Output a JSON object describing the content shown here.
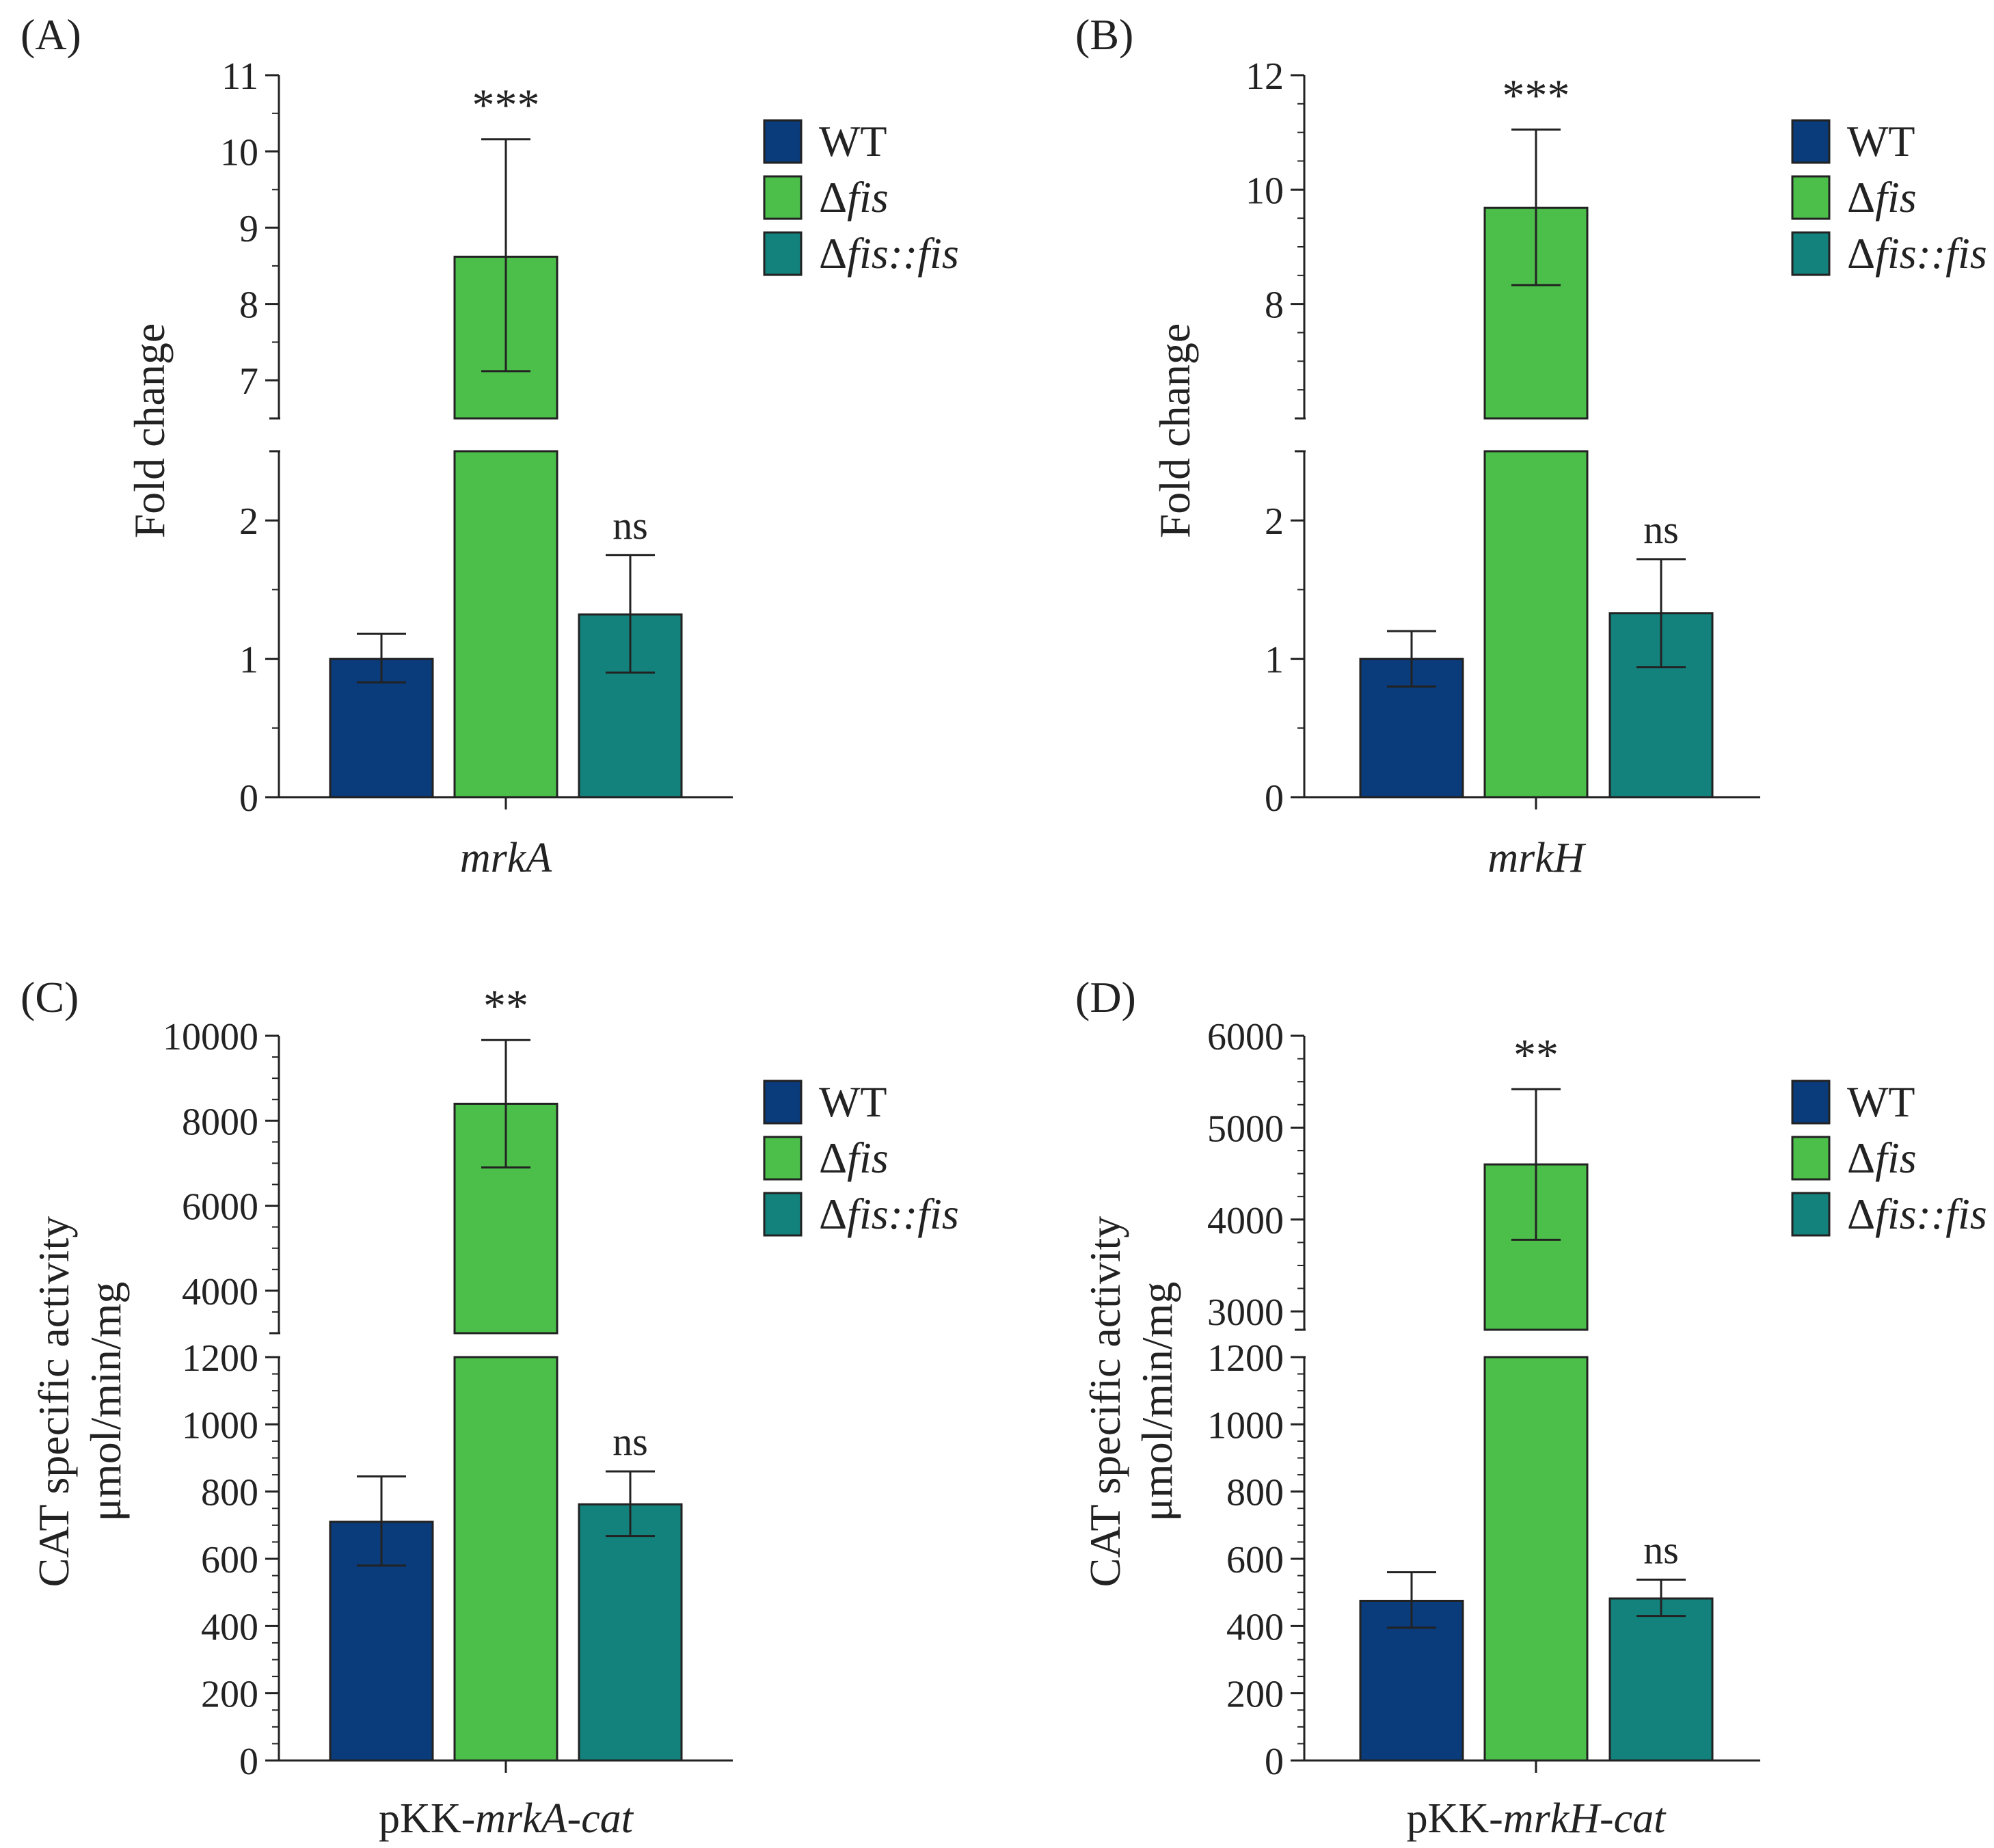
{
  "legend": [
    {
      "key": "wt",
      "label_parts": [
        {
          "t": "WT",
          "i": false
        }
      ],
      "color": "#0a3b7a"
    },
    {
      "key": "dfis",
      "label_parts": [
        {
          "t": "Δ",
          "i": false
        },
        {
          "t": "fis",
          "i": true
        }
      ],
      "color": "#4cbf4b"
    },
    {
      "key": "dfisfis",
      "label_parts": [
        {
          "t": "Δ",
          "i": false
        },
        {
          "t": "fis::fis",
          "i": true
        }
      ],
      "color": "#13827d"
    }
  ],
  "chart_data": [
    {
      "panel": "(A)",
      "type": "bar",
      "broken_axis": true,
      "ylabel_lines": [
        "Fold change"
      ],
      "xlabel_parts": [
        {
          "t": "mrkA",
          "i": true
        }
      ],
      "lower_ylim": [
        0,
        2.5
      ],
      "lower_ticks": [
        0,
        1,
        2
      ],
      "upper_ylim": [
        6.5,
        11
      ],
      "upper_ticks": [
        7,
        8,
        9,
        10,
        11
      ],
      "series": [
        {
          "name": "WT",
          "value": 1.0,
          "err_low": 0.83,
          "err_high": 1.18,
          "sig": ""
        },
        {
          "name": "Δfis",
          "value": 8.62,
          "err_low": 7.12,
          "err_high": 10.16,
          "sig": "***"
        },
        {
          "name": "Δfis::fis",
          "value": 1.32,
          "err_low": 0.9,
          "err_high": 1.75,
          "sig": "ns"
        }
      ]
    },
    {
      "panel": "(B)",
      "type": "bar",
      "broken_axis": true,
      "ylabel_lines": [
        "Fold change"
      ],
      "xlabel_parts": [
        {
          "t": "mrkH",
          "i": true
        }
      ],
      "lower_ylim": [
        0,
        2.5
      ],
      "lower_ticks": [
        0,
        1,
        2
      ],
      "upper_ylim": [
        6,
        12
      ],
      "upper_ticks": [
        8,
        10,
        12
      ],
      "series": [
        {
          "name": "WT",
          "value": 1.0,
          "err_low": 0.8,
          "err_high": 1.2,
          "sig": ""
        },
        {
          "name": "Δfis",
          "value": 9.68,
          "err_low": 8.33,
          "err_high": 11.05,
          "sig": "***"
        },
        {
          "name": "Δfis::fis",
          "value": 1.33,
          "err_low": 0.94,
          "err_high": 1.72,
          "sig": "ns"
        }
      ]
    },
    {
      "panel": "(C)",
      "type": "bar",
      "broken_axis": true,
      "ylabel_lines": [
        "CAT specific activity",
        "μmol/min/mg"
      ],
      "xlabel_parts": [
        {
          "t": "pKK-",
          "i": false
        },
        {
          "t": "mrkA-cat",
          "i": true
        }
      ],
      "lower_ylim": [
        0,
        1200
      ],
      "lower_ticks": [
        0,
        200,
        400,
        600,
        800,
        1000,
        1200
      ],
      "upper_ylim": [
        3000,
        10000
      ],
      "upper_ticks": [
        4000,
        6000,
        8000,
        10000
      ],
      "series": [
        {
          "name": "WT",
          "value": 710,
          "err_low": 580,
          "err_high": 845,
          "sig": ""
        },
        {
          "name": "Δfis",
          "value": 8400,
          "err_low": 6900,
          "err_high": 9900,
          "sig": "**"
        },
        {
          "name": "Δfis::fis",
          "value": 762,
          "err_low": 668,
          "err_high": 860,
          "sig": "ns"
        }
      ]
    },
    {
      "panel": "(D)",
      "type": "bar",
      "broken_axis": true,
      "ylabel_lines": [
        "CAT specific activity",
        "μmol/min/mg"
      ],
      "xlabel_parts": [
        {
          "t": "pKK-",
          "i": false
        },
        {
          "t": "mrkH-cat",
          "i": true
        }
      ],
      "lower_ylim": [
        0,
        1200
      ],
      "lower_ticks": [
        0,
        200,
        400,
        600,
        800,
        1000,
        1200
      ],
      "upper_ylim": [
        2800,
        6000
      ],
      "upper_ticks": [
        3000,
        4000,
        5000,
        6000
      ],
      "series": [
        {
          "name": "WT",
          "value": 475,
          "err_low": 395,
          "err_high": 560,
          "sig": ""
        },
        {
          "name": "Δfis",
          "value": 4600,
          "err_low": 3780,
          "err_high": 5420,
          "sig": "**"
        },
        {
          "name": "Δfis::fis",
          "value": 482,
          "err_low": 430,
          "err_high": 538,
          "sig": "ns"
        }
      ]
    }
  ]
}
